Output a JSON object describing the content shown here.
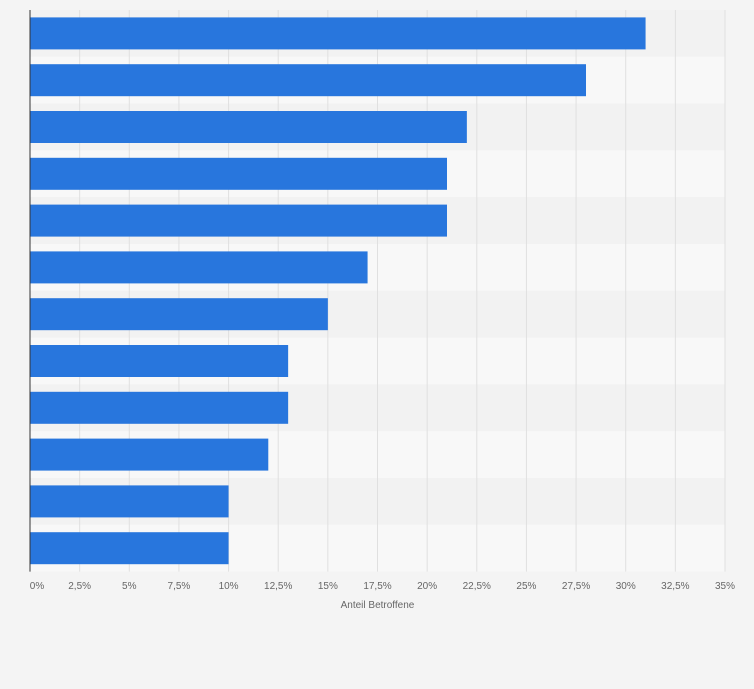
{
  "chart_data": {
    "type": "bar",
    "orientation": "horizontal",
    "title": "",
    "xlabel": "Anteil Betroffene",
    "ylabel": "",
    "xlim": [
      0,
      35
    ],
    "x_ticks": [
      "0%",
      "2,5%",
      "5%",
      "7,5%",
      "10%",
      "12,5%",
      "15%",
      "17,5%",
      "20%",
      "22,5%",
      "25%",
      "27,5%",
      "30%",
      "32,5%",
      "35%"
    ],
    "x_tick_values": [
      0,
      2.5,
      5,
      7.5,
      10,
      12.5,
      15,
      17.5,
      20,
      22.5,
      25,
      27.5,
      30,
      32.5,
      35
    ],
    "categories": [
      "",
      "",
      "",
      "",
      "",
      "",
      "",
      "",
      "",
      "",
      "",
      ""
    ],
    "values": [
      31,
      28,
      22,
      21,
      21,
      17,
      15,
      13,
      13,
      12,
      10,
      10
    ],
    "grid": true,
    "legend": "none"
  },
  "colors": {
    "bar": "#2876dd",
    "background": "#f4f4f4",
    "band_light": "#f8f8f8",
    "band_dark": "#f2f2f2",
    "grid": "#e0e0e0",
    "axis": "#333333",
    "text": "#666666"
  }
}
